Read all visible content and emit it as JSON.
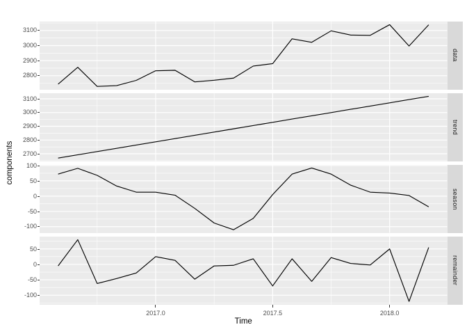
{
  "colors": {
    "panel_background": "#EBEBEB",
    "strip_background": "#D9D9D9",
    "gridline": "#FFFFFF",
    "series_line": "#000000",
    "axis_text": "#4D4D4D",
    "tick_mark": "#333333",
    "axis_title": "#000000",
    "figure_background": "#FFFFFF"
  },
  "chart_data": {
    "type": "line",
    "title": "",
    "xlabel": "Time",
    "ylabel": "components",
    "legend": "none",
    "grid": true,
    "facets": [
      "data",
      "trend",
      "season",
      "remainder"
    ],
    "x": [
      2016.583,
      2016.667,
      2016.75,
      2016.833,
      2016.917,
      2017.0,
      2017.083,
      2017.167,
      2017.25,
      2017.333,
      2017.417,
      2017.5,
      2017.583,
      2017.667,
      2017.75,
      2017.833,
      2017.917,
      2018.0,
      2018.083,
      2018.167
    ],
    "x_domain": [
      2016.504,
      2018.246
    ],
    "x_major_ticks": {
      "values": [
        2017.0,
        2017.5,
        2018.0
      ],
      "labels": [
        "2017.0",
        "2017.5",
        "2018.0"
      ]
    },
    "x_minor_ticks": [
      2016.75,
      2017.25,
      2017.75
    ],
    "panels": [
      {
        "name": "data",
        "values": [
          2744,
          2856,
          2729,
          2734,
          2769,
          2833,
          2836,
          2759,
          2770,
          2784,
          2864,
          2880,
          3045,
          3022,
          3098,
          3070,
          3068,
          3139,
          2997,
          3138
        ],
        "y_domain": [
          2708.5,
          3159.5
        ],
        "y_major_ticks": {
          "values": [
            2800,
            2900,
            3000,
            3100
          ],
          "labels": [
            "2800",
            "2900",
            "3000",
            "3100"
          ]
        },
        "y_minor_ticks": [
          2750,
          2850,
          2950,
          3050,
          3150
        ]
      },
      {
        "name": "trend",
        "values": [
          2669,
          2692.6,
          2716.3,
          2739.9,
          2763.5,
          2787.2,
          2810.8,
          2834.4,
          2858.1,
          2881.7,
          2905.3,
          2929.0,
          2952.6,
          2976.2,
          2999.9,
          3023.5,
          3047.1,
          3070.8,
          3094.4,
          3118.0
        ],
        "y_domain": [
          2646.5,
          3140.5
        ],
        "y_major_ticks": {
          "values": [
            2700,
            2800,
            2900,
            3000,
            3100
          ],
          "labels": [
            "2700",
            "2800",
            "2900",
            "3000",
            "3100"
          ]
        },
        "y_minor_ticks": [
          2650,
          2750,
          2850,
          2950,
          3050
        ]
      },
      {
        "name": "season",
        "values": [
          72,
          91,
          68,
          33,
          13,
          13,
          3,
          -40,
          -88,
          -110,
          -73,
          5,
          72,
          92,
          72,
          36,
          13,
          10,
          2,
          -35
        ],
        "y_domain": [
          -120.1,
          102.1
        ],
        "y_major_ticks": {
          "values": [
            -100,
            -50,
            0,
            50,
            100
          ],
          "labels": [
            "-100",
            "-50",
            "0",
            "50",
            "100"
          ]
        },
        "y_minor_ticks": [
          -75,
          -25,
          25,
          75
        ]
      },
      {
        "name": "remainder",
        "values": [
          -5,
          80,
          -62,
          -46,
          -28,
          25,
          13,
          -48,
          -5,
          -3,
          18,
          -70,
          18,
          -55,
          22,
          3,
          -2,
          50,
          -120,
          55
        ],
        "y_domain": [
          -130,
          90
        ],
        "y_major_ticks": {
          "values": [
            -100,
            -50,
            0,
            50
          ],
          "labels": [
            "-100",
            "-50",
            "0",
            "50"
          ]
        },
        "y_minor_ticks": [
          -125,
          -75,
          -25,
          25,
          75
        ]
      }
    ]
  }
}
